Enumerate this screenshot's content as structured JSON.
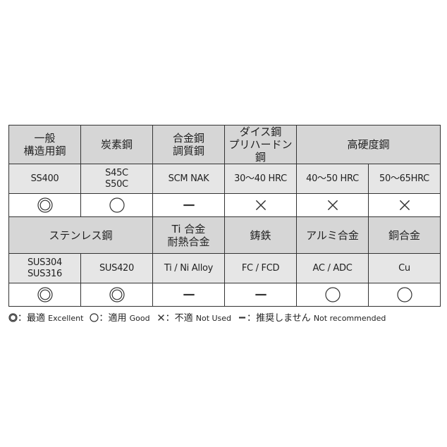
{
  "table": {
    "row1_headers": [
      {
        "label": "一般\n構造用鋼",
        "colspan": 1
      },
      {
        "label": "炭素鋼",
        "colspan": 1
      },
      {
        "label": "合金鋼\n調質鋼",
        "colspan": 1
      },
      {
        "label": "ダイス鋼\nプリハードン鋼",
        "colspan": 1
      },
      {
        "label": "高硬度鋼",
        "colspan": 2
      }
    ],
    "row1_grades": [
      "SS400",
      "S45C\nS50C",
      "SCM NAK",
      "30～40 HRC",
      "40～50 HRC",
      "50～65HRC"
    ],
    "row1_ratings": [
      "double-circle",
      "circle",
      "dash",
      "cross",
      "cross",
      "cross"
    ],
    "row2_headers": [
      {
        "label": "ステンレス鋼",
        "colspan": 2
      },
      {
        "label": "Ti 合金\n耐熱合金",
        "colspan": 1
      },
      {
        "label": "鋳鉄",
        "colspan": 1
      },
      {
        "label": "アルミ合金",
        "colspan": 1
      },
      {
        "label": "銅合金",
        "colspan": 1
      }
    ],
    "row2_grades": [
      "SUS304\nSUS316",
      "SUS420",
      "Ti / Ni Alloy",
      "FC / FCD",
      "AC / ADC",
      "Cu"
    ],
    "row2_ratings": [
      "double-circle",
      "double-circle",
      "dash",
      "dash",
      "circle",
      "circle"
    ]
  },
  "legend": [
    {
      "symbol": "double-circle",
      "sep": "：",
      "jp": "最適",
      "en": "Excellent"
    },
    {
      "symbol": "circle",
      "sep": "：",
      "jp": "適用",
      "en": "Good"
    },
    {
      "symbol": "cross",
      "sep": "：",
      "jp": "不適",
      "en": "Not Used"
    },
    {
      "symbol": "dash",
      "sep": "：",
      "jp": "推奨しません",
      "en": "Not recommended"
    }
  ],
  "colors": {
    "header_bg": "#d6d6d6",
    "grade_bg": "#e6e6e6",
    "border": "#333333"
  }
}
